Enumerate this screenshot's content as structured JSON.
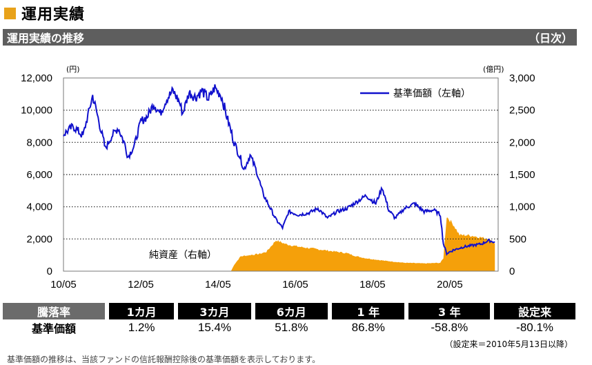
{
  "section_title": "運用実績",
  "subheader": {
    "left": "運用実績の推移",
    "right": "（日次）"
  },
  "colors": {
    "nav_line": "#1010CC",
    "assets_area": "#F5A00A",
    "accent": "#E8A21A",
    "header_bg": "#5E5E5E"
  },
  "chart_data": {
    "type": "line",
    "left_unit": "(円)",
    "right_unit": "(億円)",
    "y_left_ticks": [
      "12,000",
      "10,000",
      "8,000",
      "6,000",
      "4,000",
      "2,000",
      "0"
    ],
    "y_right_ticks": [
      "3,000",
      "2,500",
      "2,000",
      "1,500",
      "1,000",
      "500",
      "0"
    ],
    "x_ticks": [
      "10/05",
      "12/05",
      "14/05",
      "16/05",
      "18/05",
      "20/05"
    ],
    "ylim_left": [
      0,
      12000
    ],
    "ylim_right": [
      0,
      3000
    ],
    "grid": "horizontal-dotted",
    "legend_position": "top-right",
    "series": [
      {
        "name": "基準価額（左軸）",
        "axis": "left",
        "x": [
          "2010-05",
          "2010-08",
          "2010-11",
          "2011-02",
          "2011-04",
          "2011-06",
          "2011-08",
          "2011-10",
          "2011-12",
          "2012-01",
          "2012-03",
          "2012-05",
          "2012-07",
          "2012-09",
          "2012-11",
          "2013-01",
          "2013-03",
          "2013-05",
          "2013-06",
          "2013-08",
          "2013-10",
          "2013-12",
          "2014-02",
          "2014-04",
          "2014-06",
          "2014-08",
          "2014-10",
          "2014-12",
          "2015-01",
          "2015-03",
          "2015-05",
          "2015-07",
          "2015-09",
          "2015-11",
          "2016-01",
          "2016-03",
          "2016-06",
          "2016-09",
          "2016-12",
          "2017-03",
          "2017-06",
          "2017-09",
          "2017-12",
          "2018-03",
          "2018-06",
          "2018-08",
          "2018-10",
          "2018-12",
          "2019-03",
          "2019-06",
          "2019-09",
          "2019-12",
          "2020-02",
          "2020-03",
          "2020-04",
          "2020-06",
          "2020-09",
          "2020-12",
          "2021-03",
          "2021-05",
          "2021-07"
        ],
        "values": [
          8500,
          9000,
          8400,
          10900,
          9300,
          7600,
          8400,
          8900,
          7900,
          7100,
          7800,
          9300,
          9600,
          10400,
          9800,
          10700,
          11200,
          10500,
          9800,
          11100,
          10800,
          11200,
          10700,
          11400,
          10900,
          9400,
          8000,
          7000,
          6300,
          7200,
          6200,
          4800,
          4000,
          3200,
          2700,
          3700,
          3500,
          3600,
          3900,
          3300,
          3700,
          3900,
          4300,
          4700,
          4200,
          5200,
          3800,
          3300,
          3900,
          4200,
          3700,
          3800,
          3500,
          1700,
          1100,
          1300,
          1500,
          1600,
          1700,
          1900,
          1800
        ]
      },
      {
        "name": "純資産（右軸）",
        "axis": "right",
        "type": "area",
        "x": [
          "2010-05",
          "2014-09",
          "2014-10",
          "2014-12",
          "2015-03",
          "2015-06",
          "2015-08",
          "2015-11",
          "2016-02",
          "2016-06",
          "2016-09",
          "2016-12",
          "2017-03",
          "2017-06",
          "2017-09",
          "2017-12",
          "2018-03",
          "2018-06",
          "2018-09",
          "2018-12",
          "2019-03",
          "2019-06",
          "2019-09",
          "2019-12",
          "2020-02",
          "2020-03",
          "2020-04",
          "2020-06",
          "2020-08",
          "2020-10",
          "2020-12",
          "2021-02",
          "2021-05",
          "2021-07"
        ],
        "values": [
          0,
          0,
          100,
          230,
          250,
          270,
          300,
          480,
          420,
          380,
          360,
          340,
          320,
          300,
          280,
          230,
          200,
          180,
          160,
          145,
          130,
          125,
          120,
          125,
          130,
          200,
          850,
          730,
          560,
          560,
          550,
          530,
          500,
          430
        ]
      }
    ],
    "annotations": [
      "純資産（右軸）"
    ]
  },
  "table": {
    "header": [
      "騰落率",
      "1カ月",
      "3カ月",
      "6カ月",
      "1 年",
      "3 年",
      "設定来"
    ],
    "row_label": "基準価額",
    "values": [
      "1.2%",
      "15.4%",
      "51.8%",
      "86.8%",
      "-58.8%",
      "-80.1%"
    ]
  },
  "note_since": "（設定来＝2010年5月13日以降）",
  "footnote": "基準価額の推移は、当該ファンドの信託報酬控除後の基準価額を表示しております。"
}
